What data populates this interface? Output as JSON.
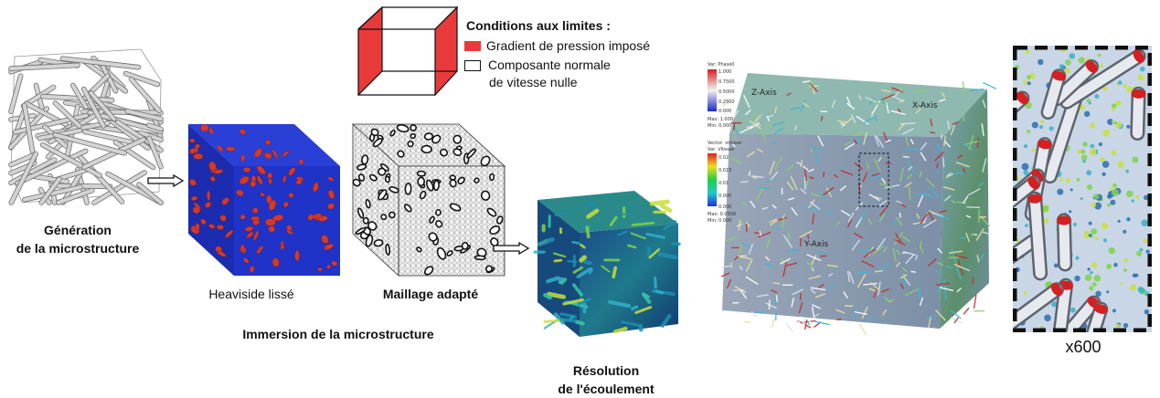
{
  "step1": {
    "label_line1": "Génération",
    "label_line2": "de la microstructure"
  },
  "step2": {
    "heaviside_caption": "Heaviside lissé",
    "mesh_caption": "Maillage adapté",
    "section_label": "Immersion de la microstructure"
  },
  "step3": {
    "label_line1": "Résolution",
    "label_line2": "de l'écoulement"
  },
  "boundary": {
    "title": "Conditions aux limites :",
    "items": [
      {
        "swatch": "#e83a3a",
        "text": "Gradient de pression imposé"
      },
      {
        "swatch": "#ffffff",
        "text": "Composante normale"
      },
      {
        "swatch": "",
        "text": "de vitesse nulle"
      }
    ]
  },
  "viz": {
    "colorbar1_title": "Var: Phase0",
    "colorbar1_ticks": [
      "1.000",
      "0.7500",
      "0.5000",
      "0.2500",
      "0.000"
    ],
    "colorbar1_max": "Max: 1.000",
    "colorbar1_min": "Min: 0.000",
    "colorbar2_title": "Vector: vitesse",
    "colorbar2_sub": "Var: Vitesse",
    "colorbar2_ticks": [
      "0.02",
      "0.015",
      "0.01",
      "0.005",
      "0.000"
    ],
    "colorbar2_max": "Max: 0.0500",
    "colorbar2_min": "Min: 0.000",
    "axis_z": "Z-Axis",
    "axis_x": "X-Axis",
    "axis_y": "Y-Axis"
  },
  "zoom": {
    "caption": "x600"
  },
  "colors": {
    "red_face": "#e83a3a",
    "blue_cube": "#1f33c8",
    "fiber_gray": "#c8c8c8"
  }
}
